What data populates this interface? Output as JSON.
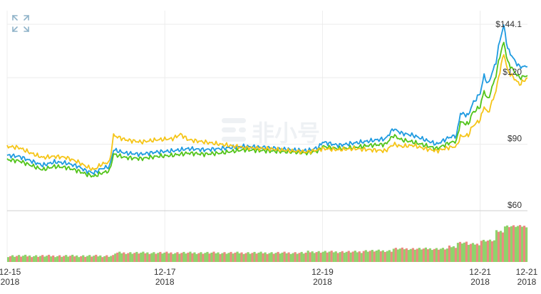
{
  "watermark": {
    "text": "非小号",
    "icon": "feixiaohao-logo-icon"
  },
  "toolbar": {
    "expand_icon": "expand-arrows-icon"
  },
  "colors": {
    "blue": "#1f9be0",
    "green": "#52c41a",
    "yellow": "#f5c518",
    "volume_up": "#8fd36b",
    "volume_down": "#ec8a80",
    "grid": "#ececec",
    "separator": "#cfcfcf",
    "label": "#333333"
  },
  "chart_data": {
    "type": "line",
    "x_ticks": [
      {
        "top": "12-15",
        "bottom": "2018",
        "t": 0
      },
      {
        "top": "12-17",
        "bottom": "2018",
        "t": 2
      },
      {
        "top": "12-19",
        "bottom": "2018",
        "t": 4
      },
      {
        "top": "12-21",
        "bottom": "2018",
        "t": 6
      },
      {
        "top": "12-21",
        "bottom": "2018",
        "t": 6.6
      }
    ],
    "y_ticks": [
      {
        "label": "$144.1",
        "value": 144.1
      },
      {
        "label": "$120",
        "value": 120
      },
      {
        "label": "$90",
        "value": 90
      },
      {
        "label": "$60",
        "value": 60
      }
    ],
    "ylim": [
      60,
      148
    ],
    "xlim": [
      0,
      6.6
    ],
    "grid": true,
    "series": [
      {
        "key": "blue",
        "color": "#1f9be0",
        "points": [
          [
            0,
            85
          ],
          [
            0.15,
            84.5
          ],
          [
            0.3,
            82.5
          ],
          [
            0.45,
            80.5
          ],
          [
            0.6,
            82
          ],
          [
            0.75,
            81.5
          ],
          [
            0.9,
            80
          ],
          [
            1.0,
            78
          ],
          [
            1.1,
            77
          ],
          [
            1.2,
            79
          ],
          [
            1.3,
            80
          ],
          [
            1.35,
            87.5
          ],
          [
            1.5,
            86
          ],
          [
            1.7,
            85.5
          ],
          [
            1.9,
            86.5
          ],
          [
            2.1,
            87
          ],
          [
            2.3,
            88
          ],
          [
            2.5,
            87.5
          ],
          [
            2.7,
            88
          ],
          [
            3.0,
            89
          ],
          [
            3.3,
            88.5
          ],
          [
            3.6,
            87.5
          ],
          [
            3.8,
            87
          ],
          [
            3.95,
            88.5
          ],
          [
            4.0,
            91
          ],
          [
            4.2,
            89.5
          ],
          [
            4.4,
            90.5
          ],
          [
            4.6,
            91.5
          ],
          [
            4.8,
            92.5
          ],
          [
            4.9,
            97
          ],
          [
            5.0,
            95
          ],
          [
            5.15,
            94
          ],
          [
            5.3,
            92
          ],
          [
            5.45,
            90
          ],
          [
            5.6,
            93
          ],
          [
            5.7,
            94
          ],
          [
            5.75,
            104
          ],
          [
            5.85,
            103
          ],
          [
            5.9,
            108
          ],
          [
            6.0,
            113
          ],
          [
            6.05,
            121
          ],
          [
            6.1,
            117
          ],
          [
            6.2,
            127
          ],
          [
            6.25,
            137
          ],
          [
            6.3,
            143.5
          ],
          [
            6.35,
            133
          ],
          [
            6.45,
            127
          ],
          [
            6.5,
            125
          ],
          [
            6.6,
            125
          ]
        ]
      },
      {
        "key": "green",
        "color": "#52c41a",
        "points": [
          [
            0,
            83
          ],
          [
            0.15,
            82.5
          ],
          [
            0.3,
            80.5
          ],
          [
            0.45,
            78.5
          ],
          [
            0.6,
            80
          ],
          [
            0.75,
            79.5
          ],
          [
            0.9,
            78
          ],
          [
            1.0,
            76.5
          ],
          [
            1.1,
            75.5
          ],
          [
            1.2,
            77
          ],
          [
            1.3,
            78
          ],
          [
            1.35,
            85.5
          ],
          [
            1.5,
            84
          ],
          [
            1.7,
            83.5
          ],
          [
            1.9,
            84.5
          ],
          [
            2.1,
            85
          ],
          [
            2.3,
            86
          ],
          [
            2.5,
            85.5
          ],
          [
            2.7,
            86
          ],
          [
            3.0,
            87.5
          ],
          [
            3.3,
            87
          ],
          [
            3.6,
            86.5
          ],
          [
            3.8,
            86
          ],
          [
            3.95,
            87
          ],
          [
            4.0,
            89
          ],
          [
            4.2,
            88
          ],
          [
            4.4,
            88.5
          ],
          [
            4.6,
            89.5
          ],
          [
            4.8,
            90
          ],
          [
            4.9,
            94
          ],
          [
            5.0,
            92
          ],
          [
            5.15,
            91
          ],
          [
            5.3,
            89.5
          ],
          [
            5.45,
            88
          ],
          [
            5.6,
            90.5
          ],
          [
            5.7,
            91.5
          ],
          [
            5.75,
            100
          ],
          [
            5.85,
            99
          ],
          [
            5.9,
            104
          ],
          [
            6.0,
            107
          ],
          [
            6.05,
            114
          ],
          [
            6.1,
            110
          ],
          [
            6.2,
            121
          ],
          [
            6.25,
            130
          ],
          [
            6.3,
            136
          ],
          [
            6.35,
            127
          ],
          [
            6.45,
            122
          ],
          [
            6.5,
            120
          ],
          [
            6.6,
            121
          ]
        ]
      },
      {
        "key": "yellow",
        "color": "#f5c518",
        "points": [
          [
            0,
            89
          ],
          [
            0.15,
            88.5
          ],
          [
            0.3,
            86
          ],
          [
            0.45,
            84
          ],
          [
            0.6,
            84.5
          ],
          [
            0.75,
            84
          ],
          [
            0.9,
            82
          ],
          [
            1.0,
            80
          ],
          [
            1.1,
            78.5
          ],
          [
            1.2,
            81
          ],
          [
            1.3,
            82
          ],
          [
            1.35,
            94
          ],
          [
            1.5,
            92
          ],
          [
            1.7,
            91
          ],
          [
            1.9,
            92
          ],
          [
            2.1,
            92.5
          ],
          [
            2.2,
            94.5
          ],
          [
            2.3,
            92
          ],
          [
            2.5,
            91
          ],
          [
            2.7,
            90
          ],
          [
            3.0,
            88.5
          ],
          [
            3.3,
            88
          ],
          [
            3.6,
            87
          ],
          [
            3.8,
            86.5
          ],
          [
            3.95,
            87.5
          ],
          [
            4.0,
            88
          ],
          [
            4.2,
            87.5
          ],
          [
            4.4,
            88
          ],
          [
            4.6,
            87.5
          ],
          [
            4.8,
            87
          ],
          [
            4.9,
            90
          ],
          [
            5.0,
            89
          ],
          [
            5.15,
            89.5
          ],
          [
            5.3,
            88
          ],
          [
            5.45,
            87
          ],
          [
            5.6,
            88.5
          ],
          [
            5.7,
            89
          ],
          [
            5.75,
            93.5
          ],
          [
            5.85,
            94
          ],
          [
            5.9,
            98
          ],
          [
            6.0,
            101
          ],
          [
            6.05,
            107
          ],
          [
            6.1,
            104
          ],
          [
            6.2,
            114
          ],
          [
            6.25,
            123
          ],
          [
            6.3,
            131
          ],
          [
            6.35,
            123
          ],
          [
            6.45,
            119
          ],
          [
            6.5,
            117
          ],
          [
            6.6,
            120
          ]
        ]
      }
    ],
    "volume": {
      "segments": [
        [
          0,
          0.12
        ],
        [
          1.35,
          0.18
        ],
        [
          3.8,
          0.2
        ],
        [
          4.5,
          0.22
        ],
        [
          4.9,
          0.26
        ],
        [
          5.6,
          0.3
        ],
        [
          5.7,
          0.38
        ],
        [
          5.85,
          0.35
        ],
        [
          6.0,
          0.42
        ],
        [
          6.2,
          0.6
        ],
        [
          6.3,
          0.7
        ],
        [
          6.6,
          0.72
        ]
      ]
    }
  }
}
